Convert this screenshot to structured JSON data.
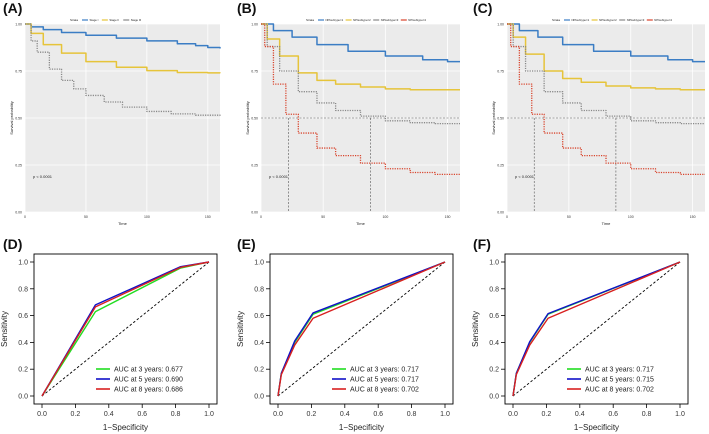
{
  "figure": {
    "panel_labels": [
      "(A)",
      "(B)",
      "(C)",
      "(D)",
      "(E)",
      "(F)"
    ]
  },
  "chart_data": [
    {
      "panel": "(A)",
      "type": "line",
      "kind": "kaplan-meier",
      "legend_title": "Strata",
      "xlabel": "Time",
      "ylabel": "Survival probability",
      "xlim": [
        0,
        160
      ],
      "ylim": [
        0,
        1
      ],
      "x_ticks": [
        0,
        50,
        100,
        150
      ],
      "y_ticks": [
        "0.00",
        "0.25",
        "0.50",
        "0.75",
        "1.00"
      ],
      "pvalue": "p < 0.0001",
      "median_lines": false,
      "series": [
        {
          "name": "Stage I",
          "color": "#3b7dc4",
          "style": "solid",
          "x": [
            0,
            5,
            15,
            30,
            50,
            75,
            100,
            125,
            140,
            150,
            160
          ],
          "y": [
            1.0,
            0.985,
            0.97,
            0.955,
            0.94,
            0.925,
            0.91,
            0.895,
            0.885,
            0.875,
            0.87
          ]
        },
        {
          "name": "Stage II",
          "color": "#e6c43a",
          "style": "solid",
          "x": [
            0,
            5,
            15,
            30,
            50,
            75,
            100,
            125,
            150,
            160
          ],
          "y": [
            1.0,
            0.95,
            0.89,
            0.845,
            0.8,
            0.77,
            0.752,
            0.742,
            0.74,
            0.738
          ]
        },
        {
          "name": "Stage III",
          "color": "#888888",
          "style": "dotted",
          "x": [
            0,
            5,
            10,
            20,
            30,
            40,
            50,
            65,
            80,
            100,
            120,
            140,
            160
          ],
          "y": [
            1.0,
            0.91,
            0.85,
            0.76,
            0.7,
            0.655,
            0.62,
            0.585,
            0.558,
            0.535,
            0.522,
            0.515,
            0.512
          ]
        }
      ]
    },
    {
      "panel": "(B)",
      "type": "line",
      "kind": "kaplan-meier",
      "legend_title": "Strata",
      "xlabel": "Time",
      "ylabel": "Survival probability",
      "xlim": [
        0,
        160
      ],
      "ylim": [
        0,
        1
      ],
      "x_ticks": [
        0,
        50,
        100,
        150
      ],
      "y_ticks": [
        "0.00",
        "0.25",
        "0.50",
        "0.75",
        "1.00"
      ],
      "pvalue": "p < 0.0001",
      "median_lines": true,
      "series": [
        {
          "name": "NPIsubtype=1",
          "color": "#3b7dc4",
          "style": "solid",
          "x": [
            0,
            10,
            25,
            45,
            70,
            100,
            130,
            150,
            160
          ],
          "y": [
            1.0,
            0.965,
            0.93,
            0.89,
            0.855,
            0.83,
            0.81,
            0.8,
            0.8
          ]
        },
        {
          "name": "NPIsubtype=2",
          "color": "#e6c43a",
          "style": "solid",
          "x": [
            0,
            5,
            15,
            30,
            45,
            60,
            80,
            100,
            120,
            140,
            160
          ],
          "y": [
            1.0,
            0.92,
            0.83,
            0.74,
            0.7,
            0.68,
            0.665,
            0.655,
            0.65,
            0.65,
            0.65
          ]
        },
        {
          "name": "NPIsubtype=3",
          "color": "#888888",
          "style": "dotted",
          "x": [
            0,
            5,
            15,
            30,
            45,
            60,
            80,
            100,
            120,
            140,
            160
          ],
          "y": [
            1.0,
            0.88,
            0.75,
            0.64,
            0.58,
            0.54,
            0.51,
            0.485,
            0.475,
            0.47,
            0.47
          ]
        },
        {
          "name": "NPIsubtype=4",
          "color": "#d8442c",
          "style": "dotted",
          "x": [
            0,
            3,
            10,
            20,
            30,
            45,
            60,
            80,
            100,
            120,
            140,
            160
          ],
          "y": [
            1.0,
            0.88,
            0.68,
            0.52,
            0.42,
            0.34,
            0.3,
            0.26,
            0.23,
            0.21,
            0.2,
            0.2
          ]
        }
      ]
    },
    {
      "panel": "(C)",
      "type": "line",
      "kind": "kaplan-meier",
      "legend_title": "Strata",
      "xlabel": "Time",
      "ylabel": "Survival probability",
      "xlim": [
        0,
        160
      ],
      "ylim": [
        0,
        1
      ],
      "x_ticks": [
        0,
        50,
        100,
        150
      ],
      "y_ticks": [
        "0.00",
        "0.25",
        "0.50",
        "0.75",
        "1.00"
      ],
      "pvalue": "p < 0.0001",
      "median_lines": true,
      "series": [
        {
          "name": "NPIsubtype=1",
          "color": "#3b7dc4",
          "style": "solid",
          "x": [
            0,
            10,
            25,
            45,
            70,
            100,
            130,
            150,
            160
          ],
          "y": [
            1.0,
            0.965,
            0.93,
            0.89,
            0.855,
            0.83,
            0.81,
            0.8,
            0.8
          ]
        },
        {
          "name": "NPIsubtype=2",
          "color": "#e6c43a",
          "style": "solid",
          "x": [
            0,
            5,
            15,
            30,
            45,
            60,
            80,
            100,
            120,
            140,
            160
          ],
          "y": [
            1.0,
            0.93,
            0.84,
            0.75,
            0.71,
            0.69,
            0.67,
            0.66,
            0.655,
            0.65,
            0.65
          ]
        },
        {
          "name": "NPIsubtype=3",
          "color": "#888888",
          "style": "dotted",
          "x": [
            0,
            5,
            15,
            30,
            45,
            60,
            80,
            100,
            120,
            140,
            160
          ],
          "y": [
            1.0,
            0.88,
            0.75,
            0.64,
            0.58,
            0.54,
            0.51,
            0.485,
            0.475,
            0.47,
            0.47
          ]
        },
        {
          "name": "NPIsubtype=4",
          "color": "#d8442c",
          "style": "dotted",
          "x": [
            0,
            3,
            10,
            20,
            30,
            45,
            60,
            80,
            100,
            120,
            140,
            160
          ],
          "y": [
            1.0,
            0.88,
            0.68,
            0.52,
            0.42,
            0.34,
            0.3,
            0.26,
            0.23,
            0.21,
            0.2,
            0.2
          ]
        }
      ]
    },
    {
      "panel": "(D)",
      "type": "line",
      "kind": "roc",
      "xlabel": "1−Specificity",
      "ylabel": "Sensitivity",
      "xlim": [
        0,
        1
      ],
      "ylim": [
        0,
        1
      ],
      "x_ticks": [
        "0.0",
        "0.2",
        "0.4",
        "0.6",
        "0.8",
        "1.0"
      ],
      "y_ticks": [
        "0.0",
        "0.2",
        "0.4",
        "0.6",
        "0.8",
        "1.0"
      ],
      "series": [
        {
          "name": "AUC at 3 years: 0.677",
          "color": "#22dd22",
          "x": [
            0,
            0.32,
            0.83,
            1.0
          ],
          "y": [
            0,
            0.63,
            0.955,
            1.0
          ]
        },
        {
          "name": "AUC at 5 years: 0.690",
          "color": "#1010c8",
          "x": [
            0,
            0.32,
            0.83,
            1.0
          ],
          "y": [
            0,
            0.68,
            0.965,
            1.0
          ]
        },
        {
          "name": "AUC at 8 years: 0.686",
          "color": "#d82020",
          "x": [
            0,
            0.32,
            0.83,
            1.0
          ],
          "y": [
            0,
            0.665,
            0.96,
            1.0
          ]
        }
      ]
    },
    {
      "panel": "(E)",
      "type": "line",
      "kind": "roc",
      "xlabel": "1−Specificity",
      "ylabel": "Sensitivity",
      "xlim": [
        0,
        1
      ],
      "ylim": [
        0,
        1
      ],
      "x_ticks": [
        "0.0",
        "0.2",
        "0.4",
        "0.6",
        "0.8",
        "1.0"
      ],
      "y_ticks": [
        "0.0",
        "0.2",
        "0.4",
        "0.6",
        "0.8",
        "1.0"
      ],
      "series": [
        {
          "name": "AUC at 3 years: 0.717",
          "color": "#22dd22",
          "x": [
            0,
            0.02,
            0.1,
            0.21,
            1.0
          ],
          "y": [
            0,
            0.17,
            0.4,
            0.61,
            1.0
          ]
        },
        {
          "name": "AUC at 5 years: 0.717",
          "color": "#1010c8",
          "x": [
            0,
            0.02,
            0.1,
            0.21,
            1.0
          ],
          "y": [
            0,
            0.17,
            0.41,
            0.62,
            1.0
          ]
        },
        {
          "name": "AUC at 8 years: 0.702",
          "color": "#d82020",
          "x": [
            0,
            0.02,
            0.1,
            0.21,
            1.0
          ],
          "y": [
            0,
            0.16,
            0.38,
            0.58,
            1.0
          ]
        }
      ]
    },
    {
      "panel": "(F)",
      "type": "line",
      "kind": "roc",
      "xlabel": "1−Specificity",
      "ylabel": "Sensitivity",
      "xlim": [
        0,
        1
      ],
      "ylim": [
        0,
        1
      ],
      "x_ticks": [
        "0.0",
        "0.2",
        "0.4",
        "0.6",
        "0.8",
        "1.0"
      ],
      "y_ticks": [
        "0.0",
        "0.2",
        "0.4",
        "0.6",
        "0.8",
        "1.0"
      ],
      "series": [
        {
          "name": "AUC at 3 years: 0.717",
          "color": "#22dd22",
          "x": [
            0,
            0.02,
            0.1,
            0.21,
            1.0
          ],
          "y": [
            0,
            0.17,
            0.4,
            0.61,
            1.0
          ]
        },
        {
          "name": "AUC at 5 years: 0.715",
          "color": "#1010c8",
          "x": [
            0,
            0.02,
            0.1,
            0.21,
            1.0
          ],
          "y": [
            0,
            0.17,
            0.405,
            0.615,
            1.0
          ]
        },
        {
          "name": "AUC at 8 years: 0.702",
          "color": "#d82020",
          "x": [
            0,
            0.02,
            0.1,
            0.21,
            1.0
          ],
          "y": [
            0,
            0.16,
            0.38,
            0.58,
            1.0
          ]
        }
      ]
    }
  ]
}
